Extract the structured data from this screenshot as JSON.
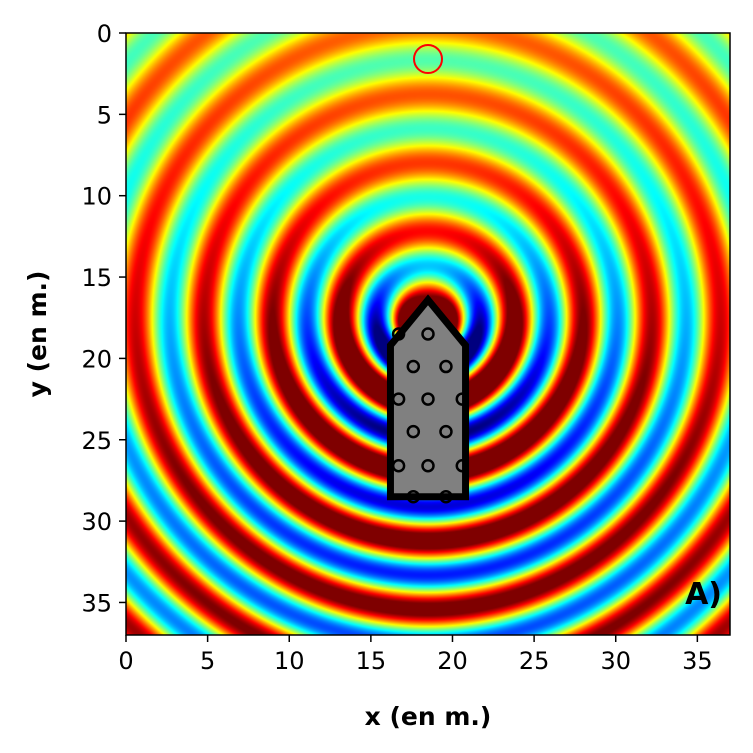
{
  "chart_data": {
    "type": "heatmap",
    "title": "",
    "xlabel": "x (en m.)",
    "ylabel": "y (en m.)",
    "xlim": [
      0,
      37
    ],
    "ylim": [
      37,
      0
    ],
    "x_ticks": [
      0,
      5,
      10,
      15,
      20,
      25,
      30,
      35
    ],
    "y_ticks": [
      0,
      5,
      10,
      15,
      20,
      25,
      30,
      35
    ],
    "y_axis_inverted": true,
    "colormap": "jet",
    "grid": false,
    "panel_label": "A)",
    "wave_source": {
      "x": 18.5,
      "y": 17.5
    },
    "wavelength_m": 4.2,
    "receiver_marker": {
      "x": 18.5,
      "y": 1.6,
      "marker": "circle",
      "color": "#ff0000"
    },
    "obstacle": {
      "fill": "#808080",
      "edge": "#000000",
      "polygon": [
        [
          16.2,
          28.5
        ],
        [
          16.2,
          19.2
        ],
        [
          18.5,
          16.4
        ],
        [
          20.8,
          19.2
        ],
        [
          20.8,
          28.5
        ]
      ],
      "holes": [
        [
          16.7,
          18.5
        ],
        [
          18.5,
          18.5
        ],
        [
          17.6,
          20.5
        ],
        [
          19.6,
          20.5
        ],
        [
          16.7,
          22.5
        ],
        [
          18.5,
          22.5
        ],
        [
          20.6,
          22.5
        ],
        [
          17.6,
          24.5
        ],
        [
          19.6,
          24.5
        ],
        [
          16.7,
          26.6
        ],
        [
          18.5,
          26.6
        ],
        [
          20.6,
          26.6
        ],
        [
          17.6,
          28.5
        ],
        [
          19.6,
          28.5
        ]
      ]
    }
  }
}
